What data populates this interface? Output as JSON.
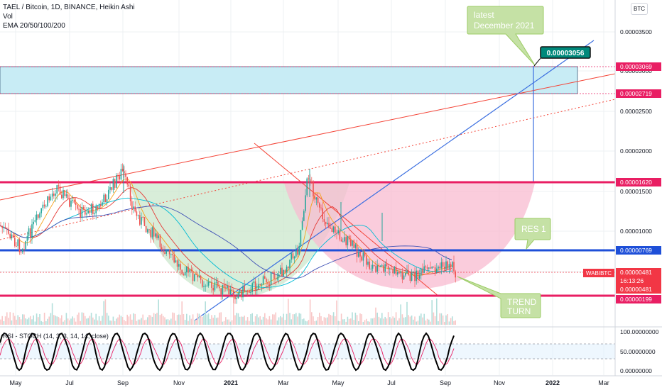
{
  "legend": {
    "symbol_line": "TAEL / Bitcoin, 1D, BINANCE, Heikin Ashi",
    "vol": "Vol",
    "ema": "EMA 20/50/100/200"
  },
  "currency_badge": "BTC",
  "price_axis": {
    "ticks": [
      "0.00003500",
      "0.00003000",
      "0.00002500",
      "0.00002000",
      "0.00001500",
      "0.00001000",
      "0.00000500"
    ],
    "labels": [
      {
        "text": "0.00003069",
        "color": "#e91e63"
      },
      {
        "text": "0.00002719",
        "color": "#e91e63"
      },
      {
        "text": "0.00001620",
        "color": "#e91e63"
      },
      {
        "text": "0.00000769",
        "color": "#1e4fd8"
      },
      {
        "text": "0.00000481",
        "color": "#f23645"
      },
      {
        "text": "16:13:26",
        "color": "#f23645"
      },
      {
        "text": "0.00000481",
        "color": "#f23645"
      },
      {
        "text": "0.00000199",
        "color": "#e91e63"
      }
    ],
    "symbol_tag": "WABIBTC"
  },
  "rsi_axis": {
    "ticks": [
      "100.00000000",
      "50.00000000",
      "0.00000000"
    ]
  },
  "rsi_label": "RSI - STOCH (14, 3, 3, 14, 14, close)",
  "time_axis": {
    "ticks": [
      {
        "label": "May",
        "bold": false
      },
      {
        "label": "Jul",
        "bold": false
      },
      {
        "label": "Sep",
        "bold": false
      },
      {
        "label": "Nov",
        "bold": false
      },
      {
        "label": "2021",
        "bold": true
      },
      {
        "label": "Mar",
        "bold": false
      },
      {
        "label": "May",
        "bold": false
      },
      {
        "label": "Jul",
        "bold": false
      },
      {
        "label": "Sep",
        "bold": false
      },
      {
        "label": "Nov",
        "bold": false
      },
      {
        "label": "2022",
        "bold": true
      },
      {
        "label": "Mar",
        "bold": false
      }
    ]
  },
  "annotations": {
    "latest": [
      "latest",
      "December 2021"
    ],
    "target_price": "0.00003056",
    "res1": "RES 1",
    "trend_turn": [
      "TREND",
      "TURN"
    ]
  },
  "colors": {
    "support_resistance": "#e91e63",
    "res1_line": "#1e4fd8",
    "target_zone": "#b3e5f0",
    "cup_green": "#c8e6c9",
    "cup_pink": "#f8bbd0",
    "callout": "#c5e1a5",
    "target_badge": "#00897b"
  },
  "chart_data": {
    "type": "candlestick",
    "chart_style": "Heikin Ashi",
    "indicators": [
      "Vol",
      "EMA 20/50/100/200",
      "RSI - STOCH (14, 3, 3, 14, 14, close)"
    ],
    "y_range": [
      1.2e-06,
      3.8e-06
    ],
    "horizontal_levels": [
      3.069e-05,
      2.719e-05,
      1.62e-05,
      7.69e-06,
      1.99e-06
    ],
    "last_price": 4.81e-06,
    "target_price": 3.056e-05,
    "rsi_levels": [
      100,
      50,
      0
    ],
    "grid": true
  }
}
